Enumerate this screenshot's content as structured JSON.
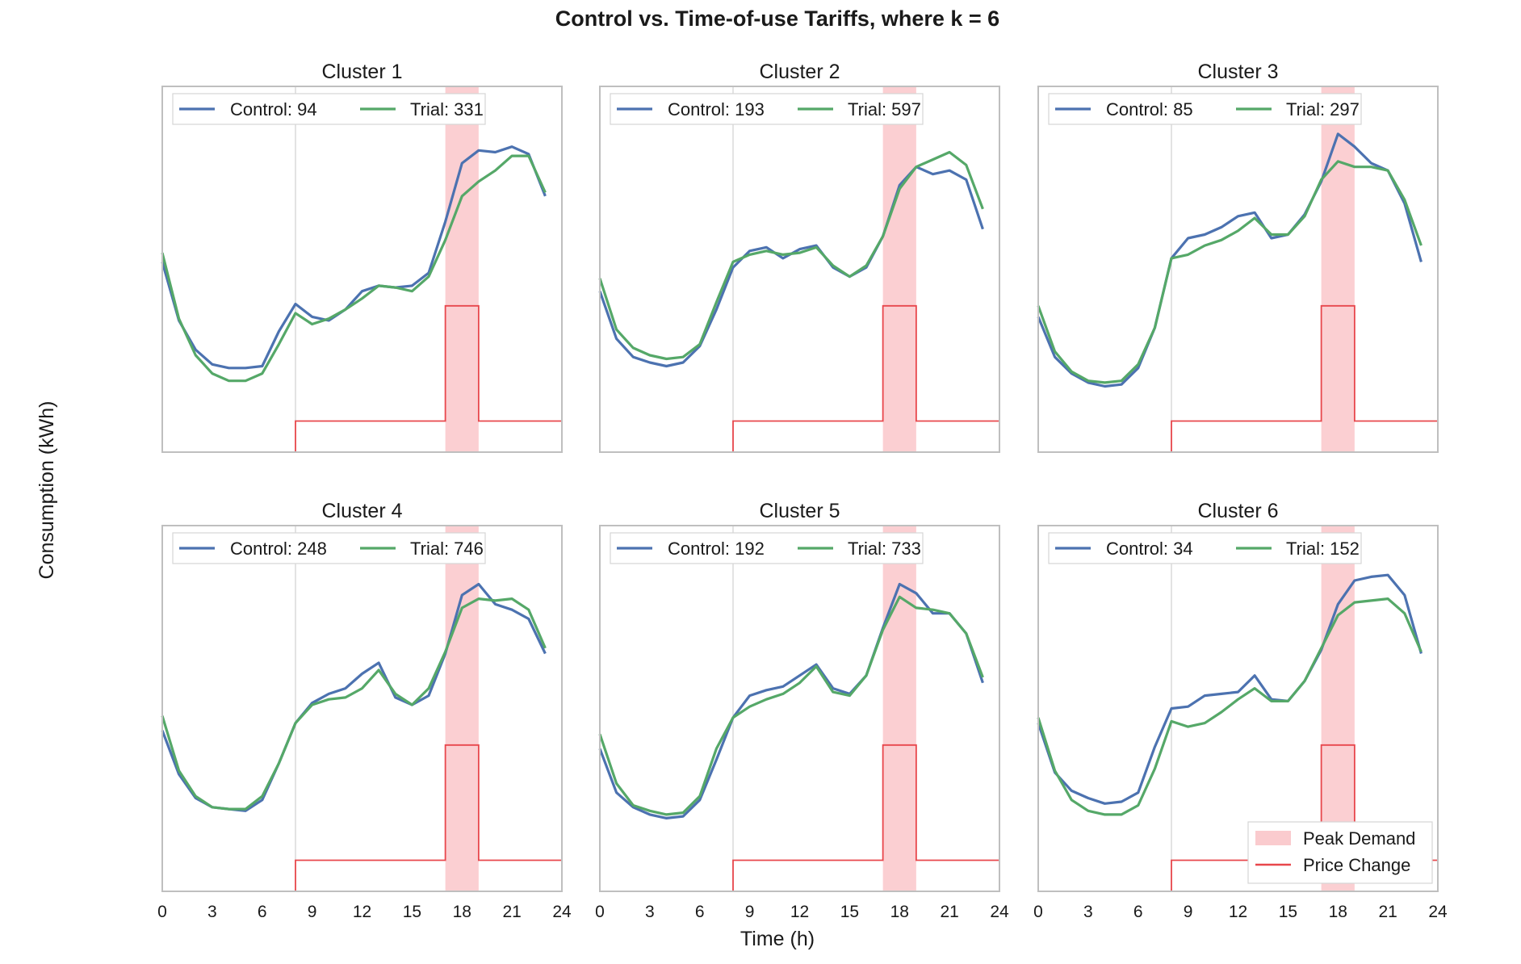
{
  "figure": {
    "title": "Control vs. Time-of-use Tariffs, where k = 6",
    "xlabel": "Time (h)",
    "ylabel": "Consumption (kWh)"
  },
  "legend_shared": {
    "peak_label": "Peak Demand",
    "price_label": "Price Change"
  },
  "colors": {
    "control": "#4c72b0",
    "trial": "#55a868",
    "price": "#e8474c",
    "peak_fill": "#f7a8ad",
    "frame": "#bfbfbf",
    "vline": "#d0d0d0"
  },
  "chart_data": {
    "type": "line",
    "x": [
      0,
      1,
      2,
      3,
      4,
      5,
      6,
      7,
      8,
      9,
      10,
      11,
      12,
      13,
      14,
      15,
      16,
      17,
      18,
      19,
      20,
      21,
      22,
      23
    ],
    "xlim": [
      0,
      24
    ],
    "xticks": [
      0,
      3,
      6,
      9,
      12,
      15,
      18,
      21,
      24
    ],
    "ylim": [
      0,
      1
    ],
    "peak_window": [
      17,
      19
    ],
    "reference_line_x": 8,
    "price_step": {
      "x": [
        0,
        8,
        17,
        19,
        24
      ],
      "y": [
        0,
        0.085,
        0.4,
        0.085,
        0.085
      ]
    },
    "panels": [
      {
        "title": "Cluster 1",
        "control_label": "Control: 94",
        "trial_label": "Trial: 331",
        "control": [
          0.52,
          0.36,
          0.28,
          0.24,
          0.23,
          0.23,
          0.235,
          0.33,
          0.405,
          0.37,
          0.36,
          0.39,
          0.44,
          0.455,
          0.45,
          0.455,
          0.49,
          0.63,
          0.79,
          0.825,
          0.82,
          0.835,
          0.815,
          0.7
        ],
        "trial": [
          0.545,
          0.365,
          0.265,
          0.215,
          0.195,
          0.195,
          0.215,
          0.295,
          0.38,
          0.35,
          0.365,
          0.39,
          0.42,
          0.455,
          0.45,
          0.44,
          0.48,
          0.58,
          0.7,
          0.74,
          0.77,
          0.81,
          0.81,
          0.71
        ]
      },
      {
        "title": "Cluster 2",
        "control_label": "Control: 193",
        "trial_label": "Trial: 597",
        "control": [
          0.44,
          0.31,
          0.26,
          0.245,
          0.235,
          0.245,
          0.29,
          0.39,
          0.505,
          0.55,
          0.56,
          0.53,
          0.555,
          0.565,
          0.505,
          0.48,
          0.505,
          0.59,
          0.73,
          0.78,
          0.76,
          0.77,
          0.745,
          0.61
        ],
        "trial": [
          0.475,
          0.335,
          0.285,
          0.265,
          0.255,
          0.26,
          0.295,
          0.41,
          0.52,
          0.54,
          0.55,
          0.54,
          0.545,
          0.56,
          0.51,
          0.48,
          0.51,
          0.59,
          0.72,
          0.78,
          0.8,
          0.82,
          0.785,
          0.665
        ]
      },
      {
        "title": "Cluster 3",
        "control_label": "Control: 85",
        "trial_label": "Trial: 297",
        "control": [
          0.37,
          0.26,
          0.215,
          0.19,
          0.18,
          0.185,
          0.23,
          0.34,
          0.53,
          0.585,
          0.595,
          0.615,
          0.645,
          0.655,
          0.585,
          0.595,
          0.65,
          0.74,
          0.87,
          0.835,
          0.79,
          0.77,
          0.68,
          0.52
        ],
        "trial": [
          0.4,
          0.275,
          0.22,
          0.195,
          0.19,
          0.195,
          0.24,
          0.34,
          0.53,
          0.54,
          0.565,
          0.58,
          0.605,
          0.64,
          0.595,
          0.595,
          0.645,
          0.745,
          0.795,
          0.78,
          0.78,
          0.77,
          0.69,
          0.565
        ]
      },
      {
        "title": "Cluster 4",
        "control_label": "Control: 248",
        "trial_label": "Trial: 746",
        "control": [
          0.44,
          0.32,
          0.255,
          0.23,
          0.225,
          0.22,
          0.25,
          0.35,
          0.46,
          0.515,
          0.54,
          0.555,
          0.595,
          0.625,
          0.53,
          0.51,
          0.535,
          0.65,
          0.81,
          0.84,
          0.785,
          0.77,
          0.745,
          0.65
        ],
        "trial": [
          0.48,
          0.33,
          0.26,
          0.23,
          0.225,
          0.225,
          0.26,
          0.35,
          0.46,
          0.51,
          0.525,
          0.53,
          0.555,
          0.605,
          0.54,
          0.51,
          0.555,
          0.655,
          0.775,
          0.8,
          0.795,
          0.8,
          0.77,
          0.665
        ]
      },
      {
        "title": "Cluster 5",
        "control_label": "Control: 192",
        "trial_label": "Trial: 733",
        "control": [
          0.39,
          0.27,
          0.23,
          0.21,
          0.2,
          0.205,
          0.25,
          0.36,
          0.475,
          0.535,
          0.55,
          0.56,
          0.59,
          0.62,
          0.555,
          0.54,
          0.59,
          0.72,
          0.84,
          0.815,
          0.76,
          0.76,
          0.705,
          0.57
        ],
        "trial": [
          0.43,
          0.295,
          0.235,
          0.22,
          0.21,
          0.215,
          0.26,
          0.39,
          0.475,
          0.505,
          0.525,
          0.54,
          0.57,
          0.615,
          0.545,
          0.535,
          0.59,
          0.715,
          0.805,
          0.775,
          0.77,
          0.76,
          0.705,
          0.585
        ]
      },
      {
        "title": "Cluster 6",
        "control_label": "Control: 34",
        "trial_label": "Trial: 152",
        "control": [
          0.46,
          0.325,
          0.275,
          0.255,
          0.24,
          0.245,
          0.27,
          0.395,
          0.5,
          0.505,
          0.535,
          0.54,
          0.545,
          0.59,
          0.525,
          0.52,
          0.575,
          0.66,
          0.785,
          0.85,
          0.86,
          0.865,
          0.81,
          0.65
        ],
        "trial": [
          0.475,
          0.33,
          0.25,
          0.22,
          0.21,
          0.21,
          0.235,
          0.335,
          0.465,
          0.45,
          0.46,
          0.49,
          0.525,
          0.555,
          0.52,
          0.52,
          0.575,
          0.665,
          0.755,
          0.79,
          0.795,
          0.8,
          0.76,
          0.655
        ]
      }
    ]
  }
}
